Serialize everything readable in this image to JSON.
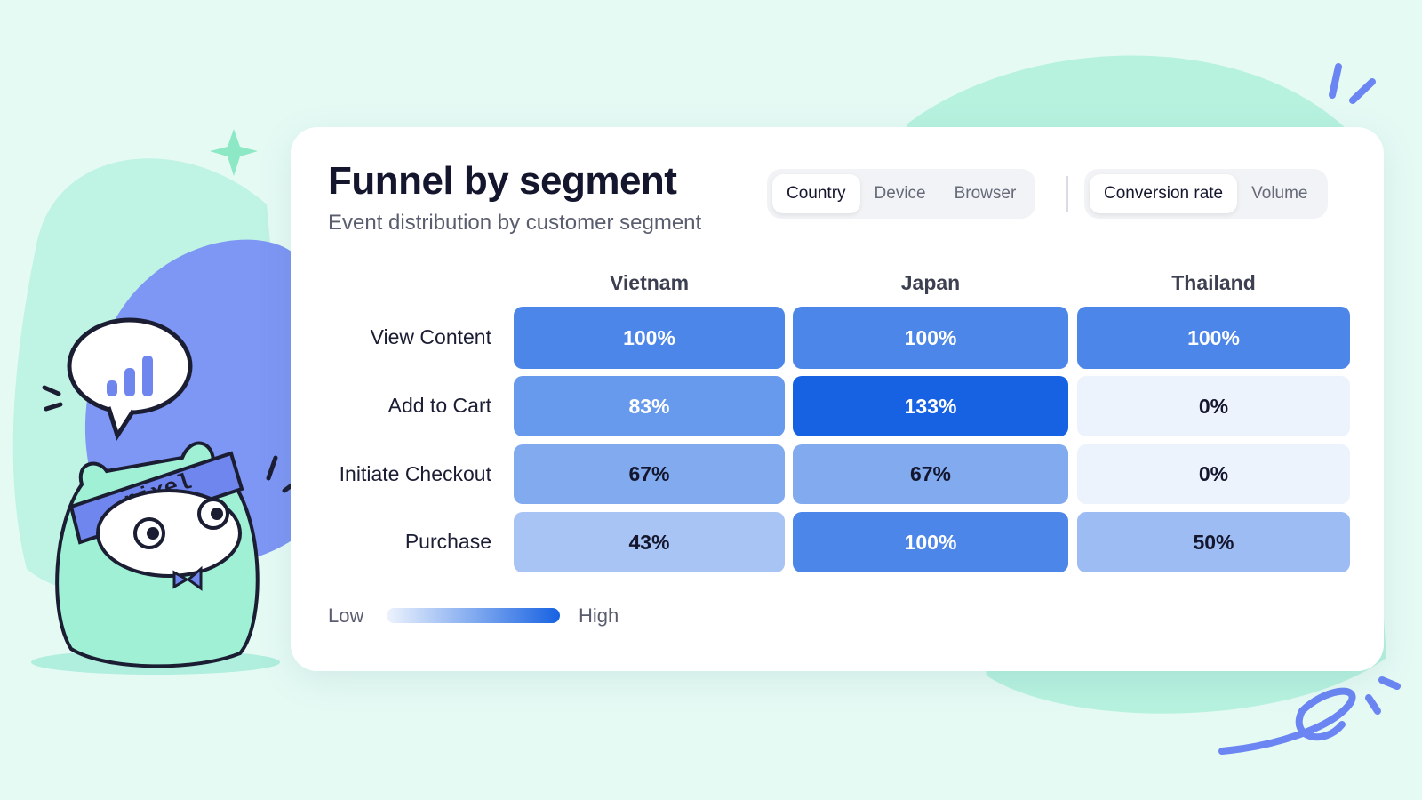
{
  "chart_data": {
    "type": "heatmap",
    "title": "Funnel by segment",
    "subtitle": "Event distribution by customer segment",
    "x_categories": [
      "Vietnam",
      "Japan",
      "Thailand"
    ],
    "y_categories": [
      "View Content",
      "Add to Cart",
      "Initiate Checkout",
      "Purchase"
    ],
    "values": [
      [
        100,
        100,
        100
      ],
      [
        83,
        133,
        0
      ],
      [
        67,
        67,
        0
      ],
      [
        43,
        100,
        50
      ]
    ],
    "value_labels": [
      [
        "100%",
        "100%",
        "100%"
      ],
      [
        "83%",
        "133%",
        "0%"
      ],
      [
        "67%",
        "67%",
        "0%"
      ],
      [
        "43%",
        "100%",
        "50%"
      ]
    ],
    "colorscale": {
      "low": "#edf3fd",
      "high": "#1762e2"
    },
    "legend_labels": {
      "low": "Low",
      "high": "High"
    }
  },
  "controls": {
    "segment_tabs": [
      "Country",
      "Device",
      "Browser"
    ],
    "active_segment": 0,
    "metric_tabs": [
      "Conversion rate",
      "Volume"
    ],
    "active_metric": 0
  },
  "mascot": {
    "label": "pixel"
  }
}
